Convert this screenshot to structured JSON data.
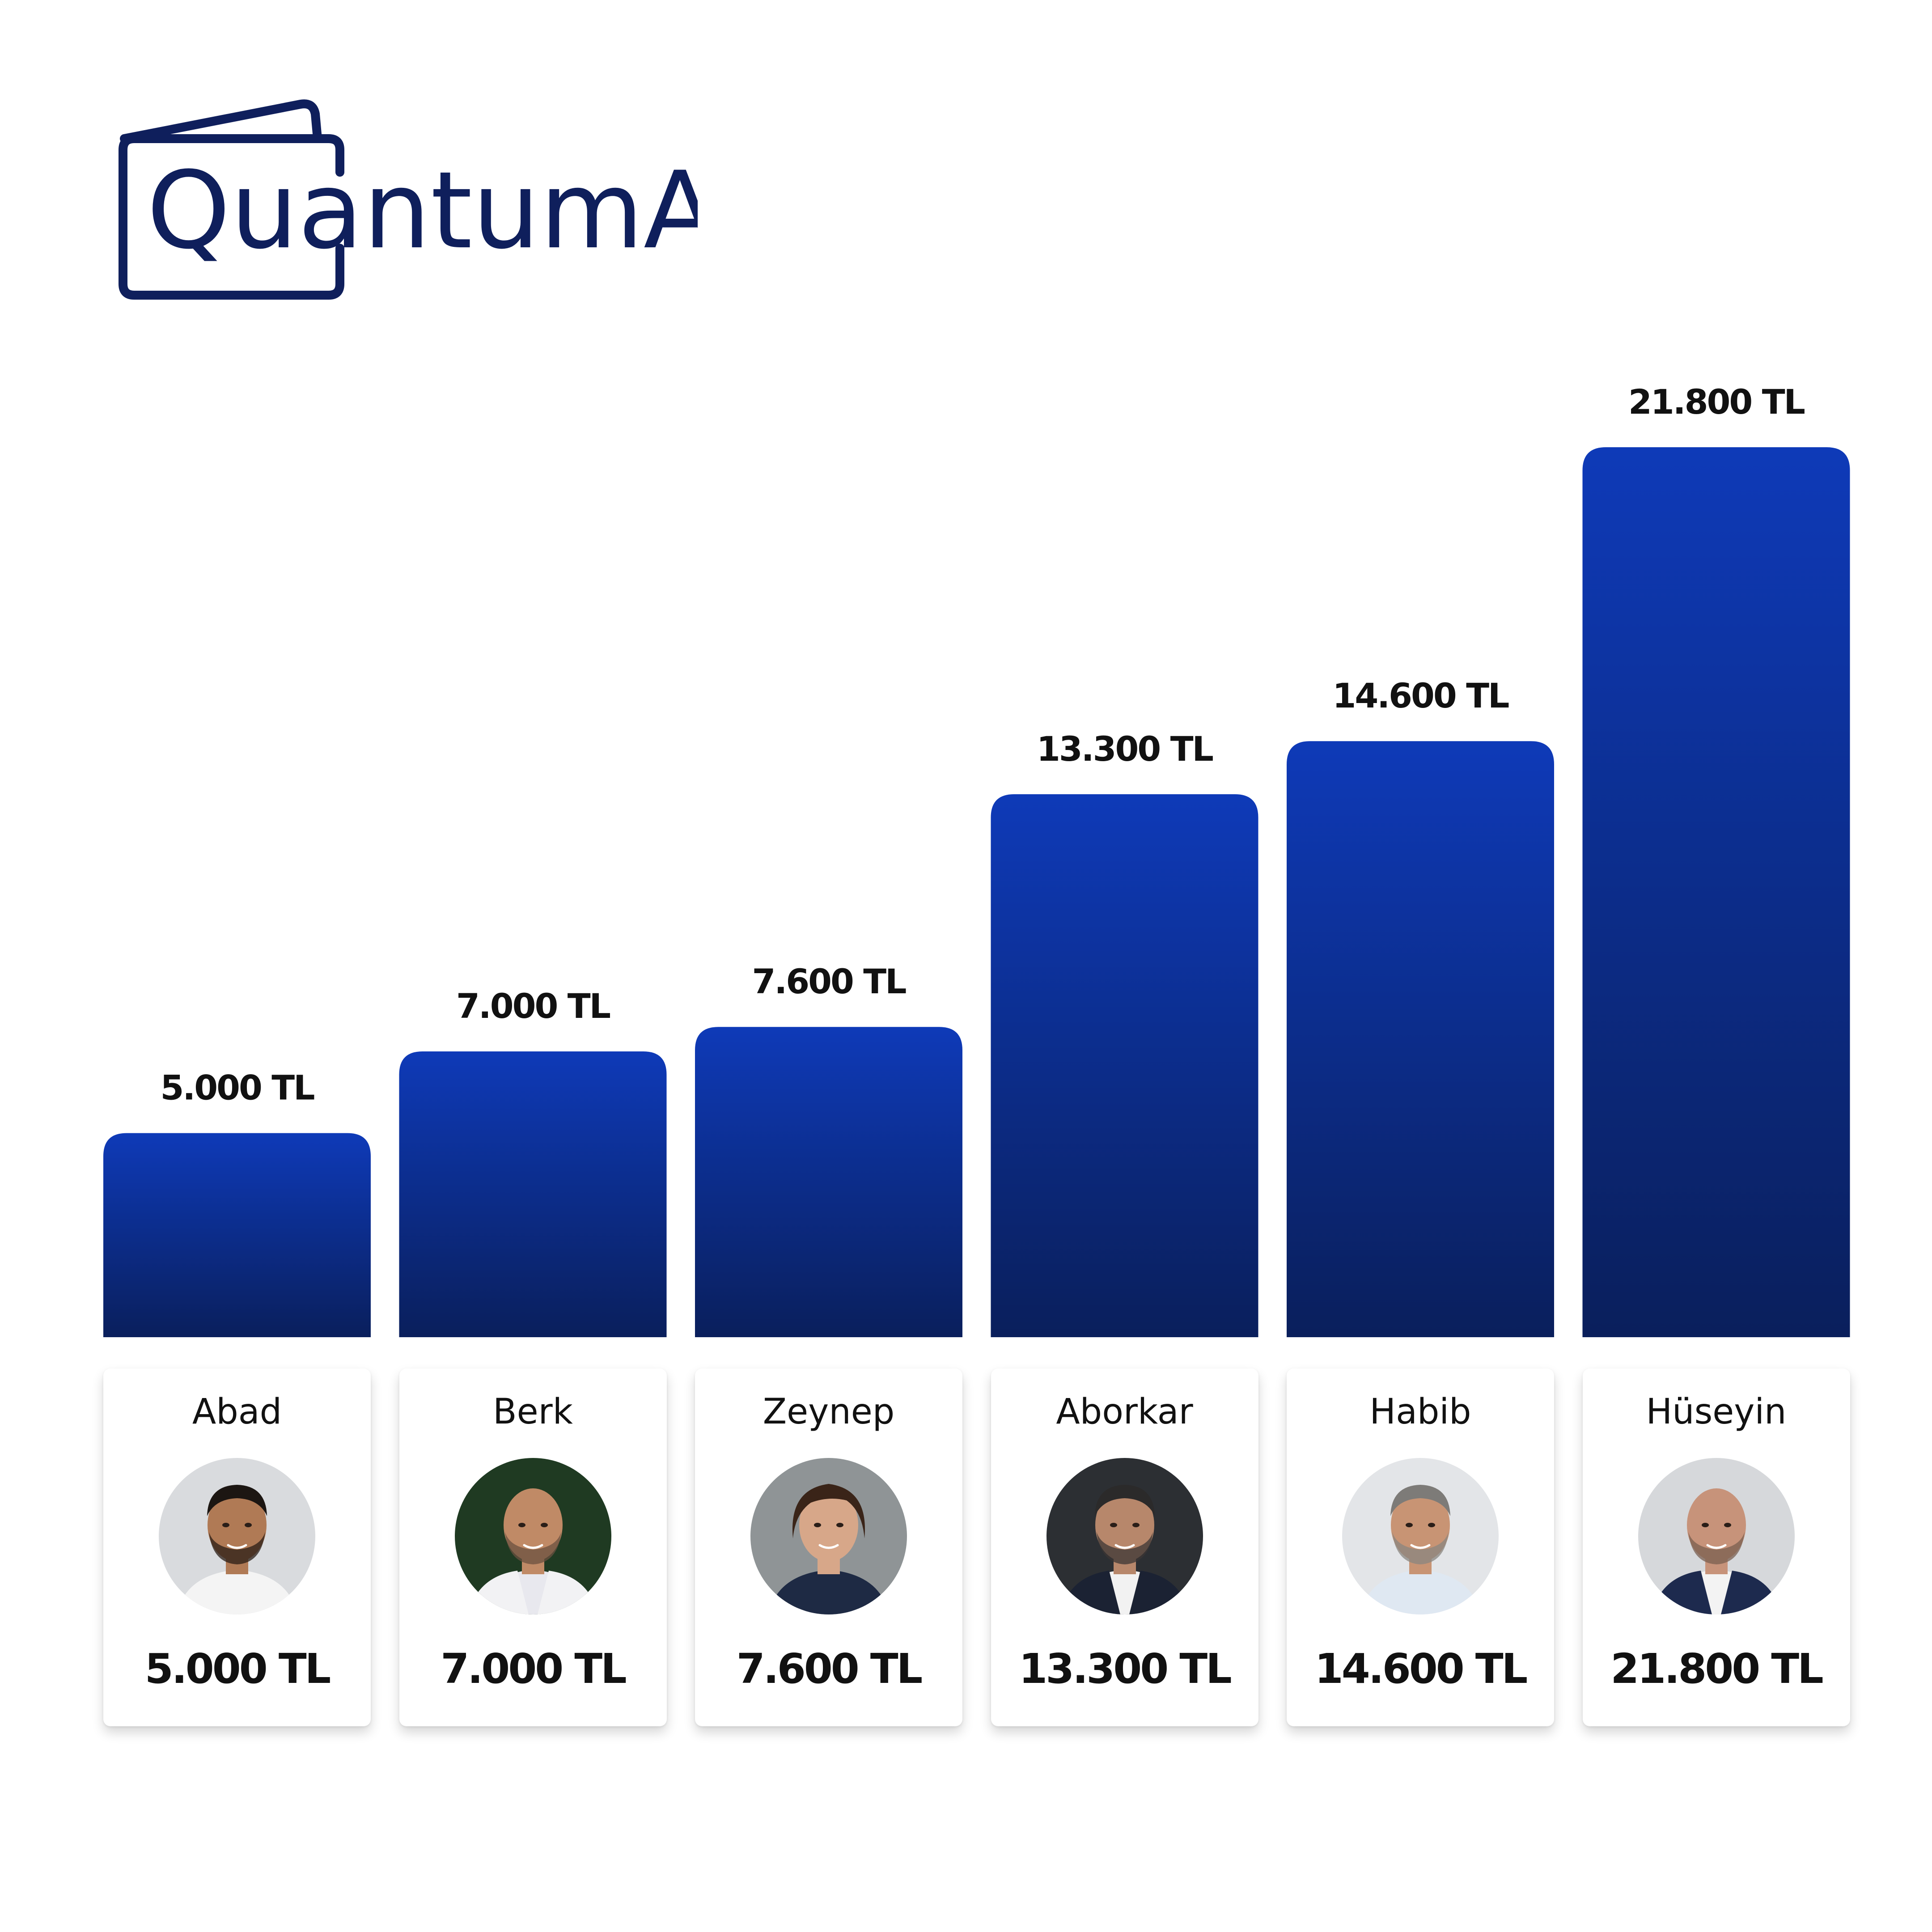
{
  "brand": {
    "name": "QuantumAI",
    "color": "#0f1f5c"
  },
  "chart_data": {
    "type": "bar",
    "categories": [
      "Abad",
      "Berk",
      "Zeynep",
      "Aborkar",
      "Habib",
      "Hüseyin"
    ],
    "values": [
      5000,
      7000,
      7600,
      13300,
      14600,
      21800
    ],
    "data_labels": [
      "5.000 TL",
      "7.000 TL",
      "7.600 TL",
      "13.300 TL",
      "14.600 TL",
      "21.800 TL"
    ],
    "unit": "TL",
    "title": "",
    "xlabel": "",
    "ylabel": "",
    "grid": false,
    "legend": "none",
    "bar_color_top": "#0e3ab8",
    "bar_color_bottom": "#0a1f5c"
  },
  "cards": [
    {
      "name": "Abad",
      "value": "5.000 TL",
      "avatar": "portrait-man-dark-hair-icon"
    },
    {
      "name": "Berk",
      "value": "7.000 TL",
      "avatar": "portrait-man-bald-white-jacket-icon"
    },
    {
      "name": "Zeynep",
      "value": "7.600 TL",
      "avatar": "portrait-woman-short-hair-icon"
    },
    {
      "name": "Aborkar",
      "value": "13.300 TL",
      "avatar": "portrait-man-suit-icon"
    },
    {
      "name": "Habib",
      "value": "14.600 TL",
      "avatar": "portrait-man-grey-hair-icon"
    },
    {
      "name": "Hüseyin",
      "value": "21.800 TL",
      "avatar": "portrait-man-bald-suit-icon"
    }
  ]
}
